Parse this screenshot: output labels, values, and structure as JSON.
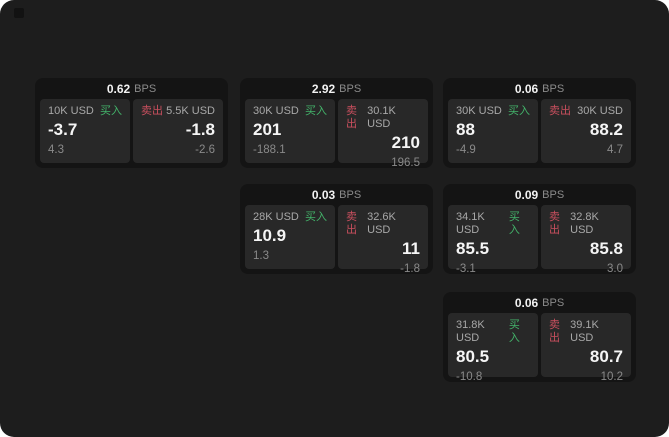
{
  "labels": {
    "bps_unit": "BPS",
    "buy": "买入",
    "sell": "卖出"
  },
  "colors": {
    "page_background": "#1d1d1d",
    "card_background": "#141414",
    "panel_background": "#282828",
    "buy_accent": "#43b36a",
    "sell_accent": "#c94f5e",
    "primary_text": "#f5f5f5",
    "muted_text": "#8a8a8a"
  },
  "cards": [
    {
      "bps": "0.62",
      "buy": {
        "amount": "10K USD",
        "value": "-3.7",
        "delta": "4.3"
      },
      "sell": {
        "amount": "5.5K USD",
        "value": "-1.8",
        "delta": "-2.6"
      }
    },
    {
      "bps": "2.92",
      "buy": {
        "amount": "30K USD",
        "value": "201",
        "delta": "-188.1"
      },
      "sell": {
        "amount": "30.1K USD",
        "value": "210",
        "delta": "196.5"
      }
    },
    {
      "bps": "0.06",
      "buy": {
        "amount": "30K USD",
        "value": "88",
        "delta": "-4.9"
      },
      "sell": {
        "amount": "30K USD",
        "value": "88.2",
        "delta": "4.7"
      }
    },
    {
      "bps": "0.03",
      "buy": {
        "amount": "28K USD",
        "value": "10.9",
        "delta": "1.3"
      },
      "sell": {
        "amount": "32.6K USD",
        "value": "11",
        "delta": "-1.8"
      }
    },
    {
      "bps": "0.09",
      "buy": {
        "amount": "34.1K USD",
        "value": "85.5",
        "delta": "-3.1"
      },
      "sell": {
        "amount": "32.8K USD",
        "value": "85.8",
        "delta": "3.0"
      }
    },
    {
      "bps": "0.06",
      "buy": {
        "amount": "31.8K USD",
        "value": "80.5",
        "delta": "-10.8"
      },
      "sell": {
        "amount": "39.1K USD",
        "value": "80.7",
        "delta": "10.2"
      }
    }
  ]
}
